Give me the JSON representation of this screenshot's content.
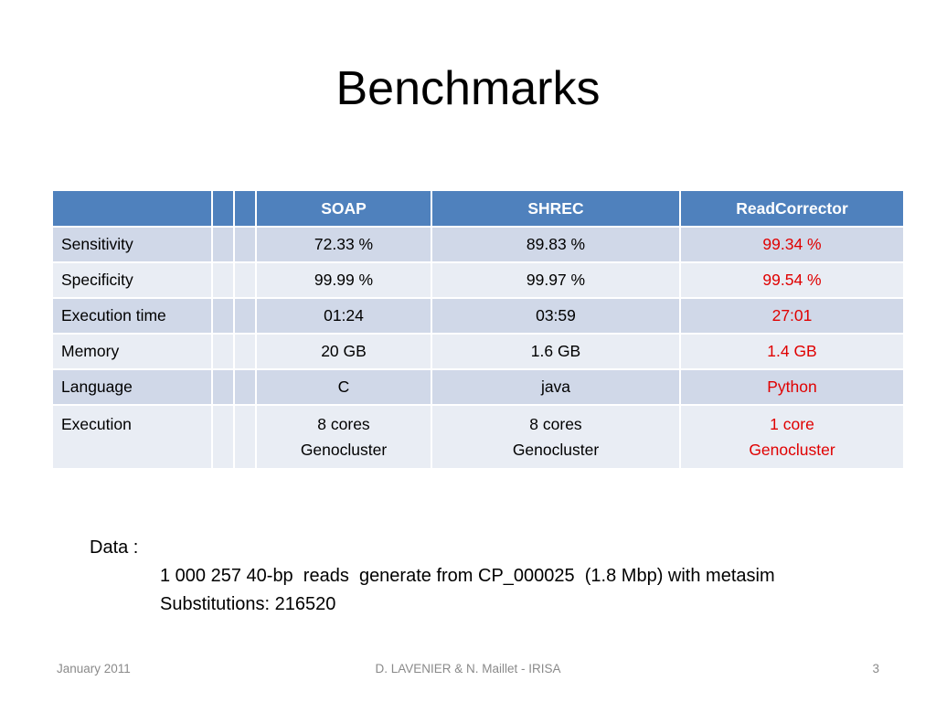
{
  "title": "Benchmarks",
  "table": {
    "headers": [
      "",
      "",
      "",
      "SOAP",
      "SHREC",
      "ReadCorrector"
    ],
    "rows": [
      {
        "label": "Sensitivity",
        "values": [
          "72.33 %",
          "89.83 %",
          "99.34 %"
        ]
      },
      {
        "label": "Specificity",
        "values": [
          "99.99 %",
          "99.97 %",
          "99.54 %"
        ]
      },
      {
        "label": "Execution time",
        "values": [
          "01:24",
          "03:59",
          "27:01"
        ]
      },
      {
        "label": "Memory",
        "values": [
          "20 GB",
          "1.6 GB",
          "1.4 GB"
        ]
      },
      {
        "label": "Language",
        "values": [
          "C",
          "java",
          "Python"
        ]
      },
      {
        "label": "Execution",
        "values": [
          [
            "8 cores",
            "Genocluster"
          ],
          [
            "8 cores",
            "Genocluster"
          ],
          [
            "1 core",
            "Genocluster"
          ]
        ]
      }
    ],
    "highlight_color": "#e00000",
    "header_color": "#4f81bd"
  },
  "data_note": {
    "label": "Data :",
    "lines": [
      "1 000 257 40-bp  reads  generate from CP_000025  (1.8 Mbp) with metasim",
      "Substitutions: 216520"
    ]
  },
  "footer": {
    "date": "January 2011",
    "authors": "D. LAVENIER & N. Maillet - IRISA",
    "page": "3"
  }
}
